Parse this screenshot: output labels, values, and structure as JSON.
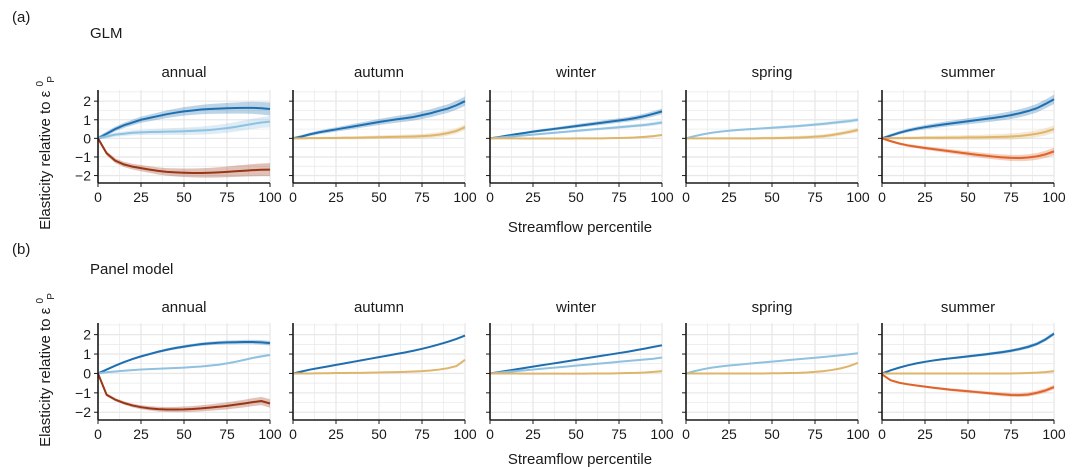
{
  "figure": {
    "panel_a": {
      "letter": "(a)",
      "model": "GLM"
    },
    "panel_b": {
      "letter": "(b)",
      "model": "Panel model"
    },
    "ylabel_main": "Elasticity relative to ε",
    "ylabel_sup": "0",
    "ylabel_sub": "P",
    "xlabel": "Streamflow percentile",
    "colors": {
      "dark_blue": "#1f6fb0",
      "light_blue": "#8fc1e0",
      "tan": "#dfb56c",
      "orange": "#e0632a",
      "dark_red": "#9a3515",
      "axis": "#1a1a1a",
      "grid": "#e8e8e8"
    }
  },
  "chart_data": [
    {
      "type": "line",
      "panel": "(a)",
      "model": "GLM",
      "xlabel": "Streamflow percentile",
      "ylabel": "Elasticity relative to ε",
      "xlim": [
        0,
        100
      ],
      "ylim": [
        -2.4,
        2.6
      ],
      "xticks": [
        0,
        25,
        50,
        75,
        100
      ],
      "yticks": [
        -2,
        -1,
        0,
        1,
        2
      ],
      "grid": true,
      "x": [
        0,
        5,
        10,
        15,
        20,
        25,
        30,
        35,
        40,
        45,
        50,
        55,
        60,
        65,
        70,
        75,
        80,
        85,
        90,
        95,
        100
      ],
      "facets": [
        {
          "season": "annual",
          "series": [
            {
              "color": "dark_blue",
              "values": [
                0,
                0.25,
                0.5,
                0.7,
                0.85,
                1.0,
                1.1,
                1.2,
                1.3,
                1.38,
                1.45,
                1.5,
                1.55,
                1.58,
                1.6,
                1.62,
                1.63,
                1.64,
                1.64,
                1.62,
                1.58
              ],
              "band": 0.35
            },
            {
              "color": "light_blue",
              "values": [
                0,
                0.1,
                0.2,
                0.25,
                0.3,
                0.32,
                0.34,
                0.35,
                0.36,
                0.37,
                0.38,
                0.4,
                0.42,
                0.45,
                0.5,
                0.55,
                0.62,
                0.7,
                0.78,
                0.85,
                0.9
              ],
              "band": 0.3
            },
            {
              "color": "dark_red",
              "values": [
                0,
                -0.8,
                -1.2,
                -1.4,
                -1.52,
                -1.6,
                -1.68,
                -1.75,
                -1.8,
                -1.83,
                -1.85,
                -1.86,
                -1.86,
                -1.85,
                -1.83,
                -1.8,
                -1.77,
                -1.74,
                -1.71,
                -1.69,
                -1.68
              ],
              "band": 0.35
            }
          ]
        },
        {
          "season": "autumn",
          "series": [
            {
              "color": "dark_blue",
              "values": [
                0,
                0.1,
                0.22,
                0.32,
                0.4,
                0.48,
                0.56,
                0.64,
                0.72,
                0.8,
                0.88,
                0.95,
                1.02,
                1.08,
                1.15,
                1.25,
                1.35,
                1.48,
                1.6,
                1.78,
                2.0
              ],
              "band": 0.25
            },
            {
              "color": "tan",
              "values": [
                0,
                0,
                0.01,
                0.01,
                0.02,
                0.02,
                0.03,
                0.03,
                0.04,
                0.05,
                0.06,
                0.07,
                0.08,
                0.09,
                0.1,
                0.12,
                0.15,
                0.2,
                0.28,
                0.4,
                0.6
              ],
              "band": 0.15
            }
          ]
        },
        {
          "season": "winter",
          "series": [
            {
              "color": "dark_blue",
              "values": [
                0,
                0.07,
                0.15,
                0.22,
                0.29,
                0.36,
                0.42,
                0.48,
                0.54,
                0.6,
                0.66,
                0.72,
                0.78,
                0.84,
                0.9,
                0.96,
                1.02,
                1.1,
                1.2,
                1.32,
                1.45
              ],
              "band": 0.15
            },
            {
              "color": "light_blue",
              "values": [
                0,
                0.04,
                0.08,
                0.12,
                0.16,
                0.2,
                0.24,
                0.28,
                0.32,
                0.36,
                0.4,
                0.44,
                0.48,
                0.52,
                0.56,
                0.6,
                0.64,
                0.68,
                0.72,
                0.78,
                0.85
              ],
              "band": 0.1
            },
            {
              "color": "tan",
              "values": [
                0,
                0,
                0,
                0,
                -0.01,
                -0.01,
                -0.01,
                -0.01,
                -0.01,
                -0.01,
                0,
                0,
                0,
                0,
                0.01,
                0.02,
                0.03,
                0.05,
                0.08,
                0.12,
                0.18
              ],
              "band": 0.06
            }
          ]
        },
        {
          "season": "spring",
          "series": [
            {
              "color": "light_blue",
              "values": [
                0,
                0.12,
                0.22,
                0.3,
                0.36,
                0.41,
                0.45,
                0.48,
                0.51,
                0.54,
                0.57,
                0.6,
                0.63,
                0.66,
                0.7,
                0.74,
                0.78,
                0.83,
                0.88,
                0.93,
                1.0
              ],
              "band": 0.1
            },
            {
              "color": "tan",
              "values": [
                0,
                0,
                0,
                0,
                0,
                0,
                0,
                0,
                0,
                0.01,
                0.01,
                0.02,
                0.03,
                0.04,
                0.06,
                0.09,
                0.12,
                0.18,
                0.26,
                0.35,
                0.45
              ],
              "band": 0.12
            }
          ]
        },
        {
          "season": "summer",
          "series": [
            {
              "color": "dark_blue",
              "values": [
                0,
                0.15,
                0.3,
                0.42,
                0.52,
                0.6,
                0.67,
                0.74,
                0.8,
                0.86,
                0.92,
                0.98,
                1.04,
                1.1,
                1.17,
                1.25,
                1.35,
                1.47,
                1.62,
                1.85,
                2.1
              ],
              "band": 0.25
            },
            {
              "color": "tan",
              "values": [
                0,
                0.01,
                0.01,
                0.02,
                0.02,
                0.03,
                0.03,
                0.03,
                0.04,
                0.04,
                0.05,
                0.05,
                0.06,
                0.07,
                0.08,
                0.1,
                0.13,
                0.18,
                0.25,
                0.35,
                0.5
              ],
              "band": 0.2
            },
            {
              "color": "orange",
              "values": [
                0,
                -0.15,
                -0.28,
                -0.38,
                -0.45,
                -0.52,
                -0.58,
                -0.64,
                -0.7,
                -0.76,
                -0.82,
                -0.88,
                -0.93,
                -0.98,
                -1.02,
                -1.05,
                -1.06,
                -1.03,
                -0.97,
                -0.86,
                -0.7
              ],
              "band": 0.2
            }
          ]
        }
      ]
    },
    {
      "type": "line",
      "panel": "(b)",
      "model": "Panel model",
      "xlabel": "Streamflow percentile",
      "ylabel": "Elasticity relative to ε",
      "xlim": [
        0,
        100
      ],
      "ylim": [
        -2.4,
        2.6
      ],
      "xticks": [
        0,
        25,
        50,
        75,
        100
      ],
      "yticks": [
        -2,
        -1,
        0,
        1,
        2
      ],
      "grid": true,
      "x": [
        0,
        5,
        10,
        15,
        20,
        25,
        30,
        35,
        40,
        45,
        50,
        55,
        60,
        65,
        70,
        75,
        80,
        85,
        90,
        95,
        100
      ],
      "facets": [
        {
          "season": "annual",
          "series": [
            {
              "color": "dark_blue",
              "values": [
                0,
                0.2,
                0.4,
                0.58,
                0.74,
                0.88,
                1.0,
                1.12,
                1.22,
                1.31,
                1.38,
                1.45,
                1.51,
                1.55,
                1.58,
                1.6,
                1.61,
                1.62,
                1.62,
                1.6,
                1.56
              ],
              "band": 0.12
            },
            {
              "color": "light_blue",
              "values": [
                0,
                0.06,
                0.1,
                0.14,
                0.17,
                0.2,
                0.22,
                0.24,
                0.26,
                0.28,
                0.3,
                0.33,
                0.36,
                0.4,
                0.45,
                0.52,
                0.6,
                0.7,
                0.8,
                0.88,
                0.95
              ],
              "band": 0.06
            },
            {
              "color": "dark_red",
              "values": [
                0,
                -1.1,
                -1.35,
                -1.52,
                -1.65,
                -1.74,
                -1.8,
                -1.84,
                -1.86,
                -1.86,
                -1.85,
                -1.83,
                -1.8,
                -1.76,
                -1.72,
                -1.67,
                -1.61,
                -1.55,
                -1.48,
                -1.42,
                -1.55
              ],
              "band": 0.22
            }
          ]
        },
        {
          "season": "autumn",
          "series": [
            {
              "color": "dark_blue",
              "values": [
                0,
                0.1,
                0.2,
                0.28,
                0.36,
                0.44,
                0.52,
                0.6,
                0.68,
                0.76,
                0.84,
                0.92,
                1.0,
                1.08,
                1.17,
                1.27,
                1.38,
                1.5,
                1.63,
                1.78,
                1.95
              ],
              "band": 0.05
            },
            {
              "color": "tan",
              "values": [
                0,
                0,
                0,
                0.01,
                0.01,
                0.02,
                0.02,
                0.03,
                0.03,
                0.04,
                0.05,
                0.06,
                0.07,
                0.08,
                0.1,
                0.12,
                0.15,
                0.2,
                0.27,
                0.38,
                0.7
              ],
              "band": 0.04
            }
          ]
        },
        {
          "season": "winter",
          "series": [
            {
              "color": "dark_blue",
              "values": [
                0,
                0.07,
                0.14,
                0.21,
                0.28,
                0.35,
                0.42,
                0.49,
                0.56,
                0.63,
                0.7,
                0.77,
                0.84,
                0.91,
                0.98,
                1.05,
                1.12,
                1.2,
                1.28,
                1.37,
                1.45
              ],
              "band": 0.04
            },
            {
              "color": "light_blue",
              "values": [
                0,
                0.04,
                0.08,
                0.12,
                0.16,
                0.2,
                0.24,
                0.28,
                0.32,
                0.36,
                0.4,
                0.44,
                0.48,
                0.52,
                0.56,
                0.6,
                0.64,
                0.68,
                0.72,
                0.76,
                0.82
              ],
              "band": 0.03
            },
            {
              "color": "tan",
              "values": [
                0,
                0,
                0,
                0,
                -0.01,
                -0.01,
                -0.01,
                -0.01,
                -0.01,
                -0.01,
                -0.01,
                -0.01,
                0,
                0,
                0,
                0.01,
                0.02,
                0.03,
                0.05,
                0.08,
                0.12
              ],
              "band": 0.02
            }
          ]
        },
        {
          "season": "spring",
          "series": [
            {
              "color": "light_blue",
              "values": [
                0,
                0.12,
                0.22,
                0.3,
                0.36,
                0.41,
                0.45,
                0.49,
                0.53,
                0.57,
                0.61,
                0.65,
                0.69,
                0.73,
                0.77,
                0.81,
                0.85,
                0.89,
                0.94,
                0.99,
                1.04
              ],
              "band": 0.03
            },
            {
              "color": "tan",
              "values": [
                0,
                0,
                0,
                0,
                0,
                0,
                0,
                0,
                0,
                0,
                0.01,
                0.01,
                0.02,
                0.03,
                0.05,
                0.08,
                0.12,
                0.18,
                0.26,
                0.38,
                0.55
              ],
              "band": 0.03
            }
          ]
        },
        {
          "season": "summer",
          "series": [
            {
              "color": "dark_blue",
              "values": [
                0,
                0.16,
                0.3,
                0.42,
                0.52,
                0.6,
                0.67,
                0.73,
                0.78,
                0.83,
                0.88,
                0.93,
                0.98,
                1.04,
                1.1,
                1.17,
                1.26,
                1.37,
                1.52,
                1.75,
                2.05
              ],
              "band": 0.1
            },
            {
              "color": "tan",
              "values": [
                0,
                0,
                0,
                0,
                0,
                0,
                0,
                0,
                0,
                0,
                0,
                0,
                0,
                0,
                0,
                0,
                0.01,
                0.02,
                0.04,
                0.07,
                0.12
              ],
              "band": 0.03
            },
            {
              "color": "orange",
              "values": [
                -0.05,
                -0.35,
                -0.48,
                -0.56,
                -0.62,
                -0.68,
                -0.74,
                -0.79,
                -0.84,
                -0.88,
                -0.92,
                -0.96,
                -1.0,
                -1.04,
                -1.08,
                -1.11,
                -1.12,
                -1.09,
                -1.0,
                -0.88,
                -0.7
              ],
              "band": 0.12
            }
          ]
        }
      ]
    }
  ]
}
